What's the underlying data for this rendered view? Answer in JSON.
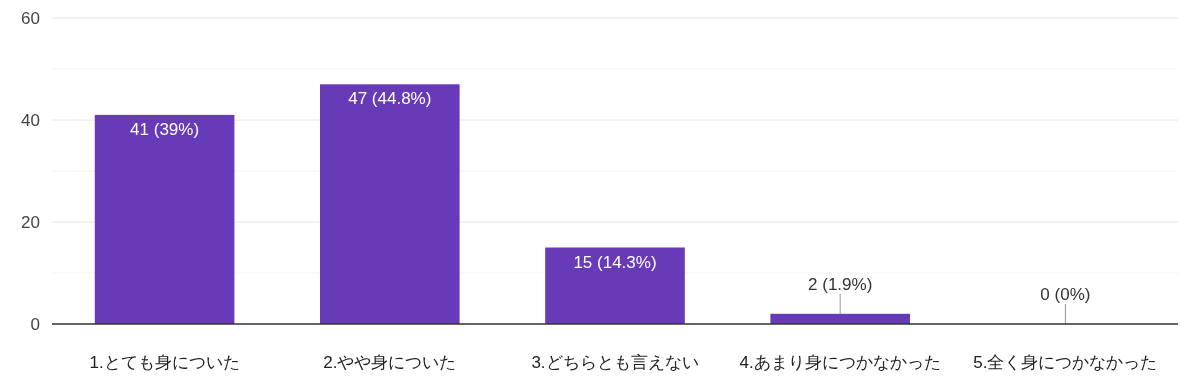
{
  "chart_data": {
    "type": "bar",
    "categories": [
      "1.とても身についた",
      "2.やや身についた",
      "3.どちらとも言えない",
      "4.あまり身につかなかった",
      "5.全く身につかなかった"
    ],
    "values": [
      41,
      47,
      15,
      2,
      0
    ],
    "value_labels": [
      "41 (39%)",
      "47 (44.8%)",
      "15 (14.3%)",
      "2 (1.9%)",
      "0 (0%)"
    ],
    "color": "#673ab7",
    "ylim": [
      0,
      60
    ],
    "yticks": [
      0,
      {
        "value": 10,
        "label": null
      },
      20,
      {
        "value": 30,
        "label": null
      },
      40,
      {
        "value": 50,
        "label": null
      },
      60
    ],
    "grid": true
  }
}
